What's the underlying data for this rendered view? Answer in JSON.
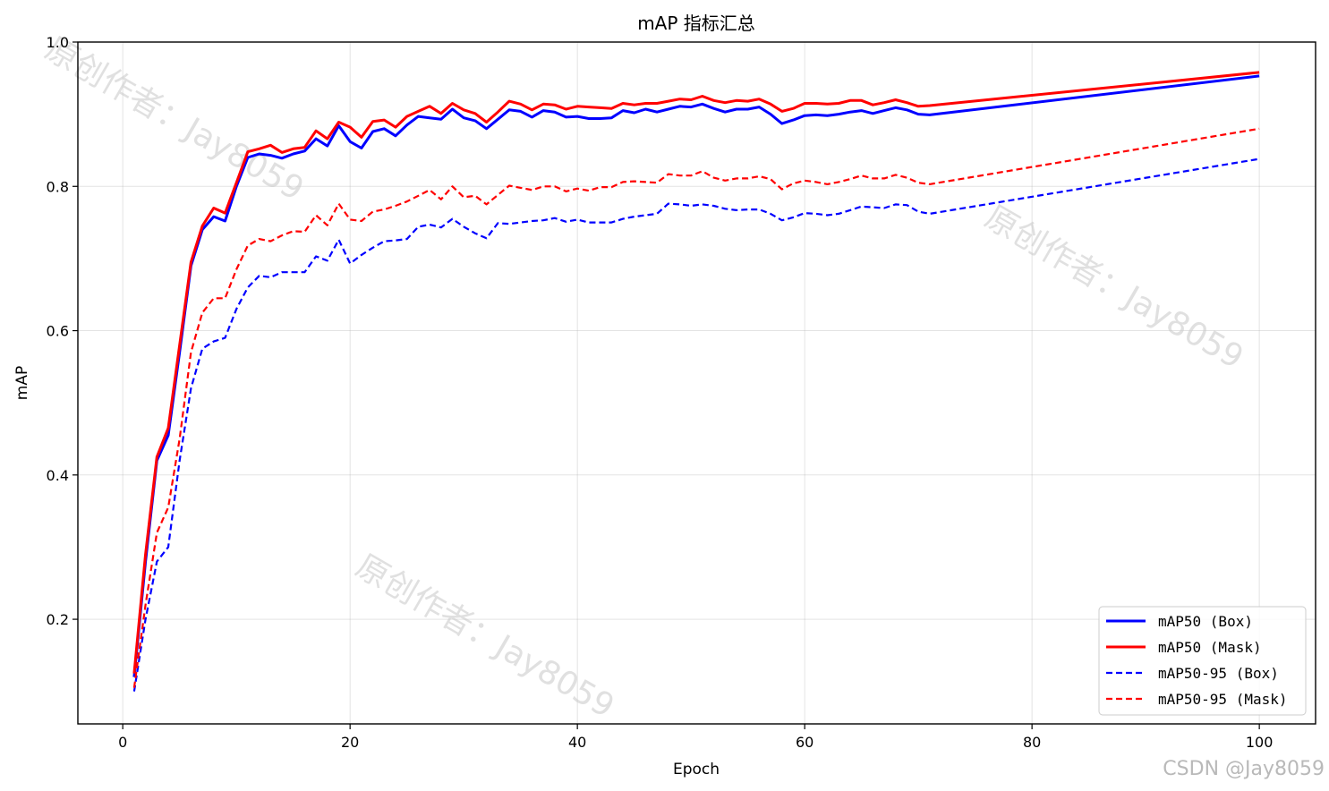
{
  "chart_data": {
    "type": "line",
    "title": "mAP 指标汇总",
    "xlabel": "Epoch",
    "ylabel": "mAP",
    "xlim": [
      -3.95,
      104.95
    ],
    "ylim": [
      0.055,
      1.0
    ],
    "xticks": [
      0,
      20,
      40,
      60,
      80,
      100
    ],
    "yticks": [
      0.2,
      0.4,
      0.6,
      0.8,
      1.0
    ],
    "xtick_labels": [
      "0",
      "20",
      "40",
      "60",
      "80",
      "100"
    ],
    "ytick_labels": [
      "0.2",
      "0.4",
      "0.6",
      "0.8",
      "1.0"
    ],
    "grid": true,
    "legend_position": "lower-right",
    "x": [
      1,
      2,
      3,
      4,
      5,
      6,
      7,
      8,
      9,
      10,
      11,
      12,
      13,
      14,
      15,
      16,
      17,
      18,
      19,
      20,
      21,
      22,
      23,
      24,
      25,
      26,
      27,
      28,
      29,
      30,
      31,
      32,
      33,
      34,
      35,
      36,
      37,
      38,
      39,
      40,
      41,
      42,
      43,
      44,
      45,
      46,
      47,
      48,
      49,
      50,
      51,
      52,
      53,
      54,
      55,
      56,
      57,
      58,
      59,
      60,
      61,
      62,
      63,
      64,
      65,
      66,
      67,
      68,
      69,
      70,
      71,
      100
    ],
    "series": [
      {
        "name": "mAP50 (Box)",
        "color": "#0000ff",
        "style": "solid",
        "values": [
          0.12,
          0.28,
          0.42,
          0.455,
          0.57,
          0.69,
          0.74,
          0.758,
          0.752,
          0.8,
          0.84,
          0.845,
          0.843,
          0.839,
          0.845,
          0.849,
          0.866,
          0.856,
          0.884,
          0.862,
          0.853,
          0.876,
          0.88,
          0.87,
          0.885,
          0.897,
          0.895,
          0.893,
          0.907,
          0.895,
          0.891,
          0.88,
          0.893,
          0.906,
          0.904,
          0.896,
          0.905,
          0.903,
          0.896,
          0.897,
          0.894,
          0.894,
          0.895,
          0.905,
          0.902,
          0.907,
          0.903,
          0.907,
          0.911,
          0.91,
          0.914,
          0.908,
          0.903,
          0.907,
          0.907,
          0.91,
          0.9,
          0.887,
          0.892,
          0.898,
          0.899,
          0.898,
          0.9,
          0.903,
          0.905,
          0.901,
          0.905,
          0.909,
          0.906,
          0.9,
          0.899,
          0.953
        ]
      },
      {
        "name": "mAP50 (Mask)",
        "color": "#ff0000",
        "style": "solid",
        "values": [
          0.125,
          0.29,
          0.425,
          0.465,
          0.58,
          0.695,
          0.745,
          0.77,
          0.763,
          0.805,
          0.848,
          0.852,
          0.857,
          0.847,
          0.852,
          0.854,
          0.877,
          0.866,
          0.889,
          0.882,
          0.868,
          0.89,
          0.892,
          0.882,
          0.897,
          0.904,
          0.911,
          0.901,
          0.915,
          0.906,
          0.901,
          0.889,
          0.903,
          0.918,
          0.914,
          0.906,
          0.914,
          0.913,
          0.907,
          0.911,
          0.91,
          0.909,
          0.908,
          0.915,
          0.913,
          0.915,
          0.915,
          0.918,
          0.921,
          0.92,
          0.925,
          0.919,
          0.916,
          0.919,
          0.918,
          0.921,
          0.914,
          0.904,
          0.908,
          0.915,
          0.915,
          0.914,
          0.915,
          0.919,
          0.919,
          0.913,
          0.916,
          0.92,
          0.916,
          0.911,
          0.912,
          0.958
        ]
      },
      {
        "name": "mAP50-95 (Box)",
        "color": "#0000ff",
        "style": "dashed",
        "values": [
          0.1,
          0.2,
          0.28,
          0.3,
          0.42,
          0.52,
          0.575,
          0.585,
          0.59,
          0.63,
          0.66,
          0.676,
          0.674,
          0.681,
          0.681,
          0.681,
          0.703,
          0.697,
          0.726,
          0.693,
          0.705,
          0.715,
          0.724,
          0.725,
          0.727,
          0.744,
          0.747,
          0.743,
          0.755,
          0.744,
          0.735,
          0.728,
          0.749,
          0.748,
          0.75,
          0.752,
          0.753,
          0.756,
          0.751,
          0.754,
          0.75,
          0.75,
          0.75,
          0.755,
          0.758,
          0.76,
          0.762,
          0.776,
          0.775,
          0.773,
          0.775,
          0.773,
          0.769,
          0.767,
          0.768,
          0.768,
          0.762,
          0.753,
          0.757,
          0.763,
          0.762,
          0.76,
          0.762,
          0.767,
          0.772,
          0.771,
          0.77,
          0.775,
          0.774,
          0.765,
          0.762,
          0.838
        ]
      },
      {
        "name": "mAP50-95 (Mask)",
        "color": "#ff0000",
        "style": "dashed",
        "values": [
          0.105,
          0.22,
          0.32,
          0.355,
          0.45,
          0.57,
          0.625,
          0.645,
          0.645,
          0.685,
          0.718,
          0.727,
          0.724,
          0.732,
          0.738,
          0.737,
          0.76,
          0.746,
          0.776,
          0.754,
          0.752,
          0.765,
          0.768,
          0.773,
          0.779,
          0.787,
          0.795,
          0.782,
          0.8,
          0.785,
          0.787,
          0.775,
          0.788,
          0.801,
          0.798,
          0.795,
          0.8,
          0.8,
          0.793,
          0.797,
          0.794,
          0.799,
          0.799,
          0.806,
          0.807,
          0.806,
          0.805,
          0.817,
          0.815,
          0.815,
          0.821,
          0.812,
          0.808,
          0.811,
          0.811,
          0.814,
          0.81,
          0.796,
          0.804,
          0.808,
          0.806,
          0.803,
          0.806,
          0.81,
          0.815,
          0.811,
          0.811,
          0.816,
          0.812,
          0.805,
          0.803,
          0.88
        ]
      }
    ]
  },
  "watermark": {
    "text": "原创作者：Jay8059",
    "credit": "CSDN @Jay8059"
  }
}
